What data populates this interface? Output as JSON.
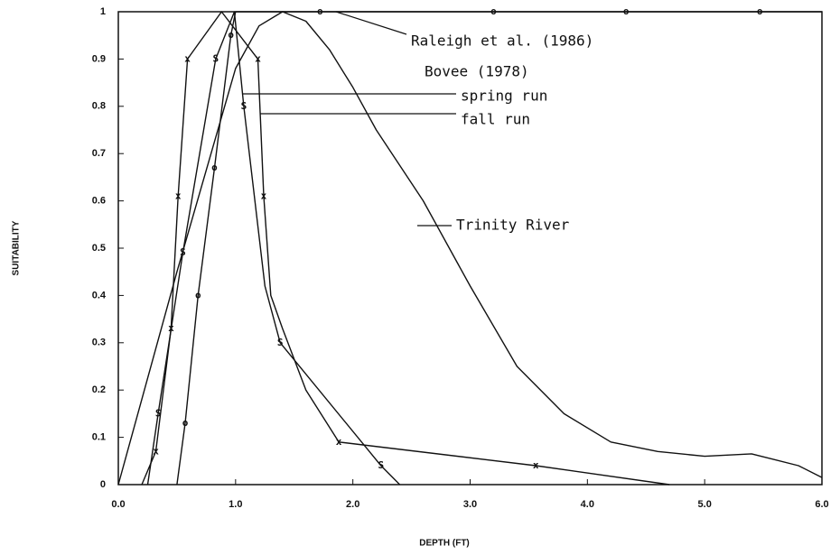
{
  "chart_data": {
    "type": "line",
    "xlabel": "DEPTH (FT)",
    "ylabel": "SUITABILITY",
    "xlim": [
      0,
      6
    ],
    "ylim": [
      0,
      1
    ],
    "xticks": [
      {
        "value": 0,
        "label": "0.0"
      },
      {
        "value": 1,
        "label": "1.0"
      },
      {
        "value": 2,
        "label": "2.0"
      },
      {
        "value": 3,
        "label": "3.0"
      },
      {
        "value": 4,
        "label": "4.0"
      },
      {
        "value": 5,
        "label": "5.0"
      },
      {
        "value": 6,
        "label": "6.0"
      }
    ],
    "yticks": [
      0,
      0.1,
      0.2,
      0.3,
      0.4,
      0.5,
      0.6,
      0.7,
      0.8,
      0.9,
      1
    ],
    "color": "#111111",
    "annotations": [
      "Raleigh et al. (1986)",
      "Bovee (1978)",
      "spring run",
      "fall run",
      "Trinity River"
    ],
    "series": [
      {
        "name": "Raleigh et al. (1986)",
        "marker": "o",
        "x": [
          0.5,
          0.57,
          0.68,
          0.82,
          0.96,
          1.0,
          6.0
        ],
        "values": [
          0,
          0.13,
          0.4,
          0.67,
          0.95,
          1,
          1
        ],
        "marker_x": [
          0.57,
          0.68,
          0.82,
          0.96,
          1.72,
          3.2,
          4.33,
          5.47
        ],
        "marker_values": [
          0.13,
          0.4,
          0.67,
          0.95,
          1,
          1,
          1,
          1
        ]
      },
      {
        "name": "spring run",
        "marker": "x",
        "x": [
          0.2,
          0.32,
          0.45,
          0.51,
          0.59,
          0.88,
          1.19,
          1.24,
          1.3,
          1.4,
          1.6,
          1.88,
          3.56,
          4.7
        ],
        "values": [
          0,
          0.07,
          0.33,
          0.61,
          0.9,
          1,
          0.9,
          0.61,
          0.4,
          0.33,
          0.2,
          0.09,
          0.04,
          0
        ],
        "marker_x": [
          0.32,
          0.45,
          0.51,
          0.59,
          1.19,
          1.24,
          1.88,
          3.56
        ],
        "marker_values": [
          0.07,
          0.33,
          0.61,
          0.9,
          0.9,
          0.61,
          0.09,
          0.04
        ]
      },
      {
        "name": "fall run",
        "marker": "S",
        "x": [
          0.25,
          0.34,
          0.55,
          0.83,
          0.99,
          1.07,
          1.25,
          1.38,
          2.24,
          2.4
        ],
        "values": [
          0,
          0.15,
          0.49,
          0.9,
          1,
          0.8,
          0.42,
          0.3,
          0.04,
          0
        ],
        "marker_x": [
          0.34,
          0.55,
          0.83,
          1.07,
          1.38,
          2.24
        ],
        "marker_values": [
          0.15,
          0.49,
          0.9,
          0.8,
          0.3,
          0.04
        ]
      },
      {
        "name": "Trinity River",
        "x": [
          0,
          0.5,
          1.0,
          1.2,
          1.4,
          1.6,
          1.8,
          2.0,
          2.2,
          2.6,
          3.0,
          3.4,
          3.8,
          4.2,
          4.6,
          5.0,
          5.4,
          5.8,
          6.0
        ],
        "values": [
          0,
          0.45,
          0.88,
          0.97,
          1,
          0.98,
          0.92,
          0.84,
          0.75,
          0.6,
          0.42,
          0.25,
          0.15,
          0.09,
          0.07,
          0.06,
          0.065,
          0.04,
          0.015
        ]
      }
    ]
  }
}
